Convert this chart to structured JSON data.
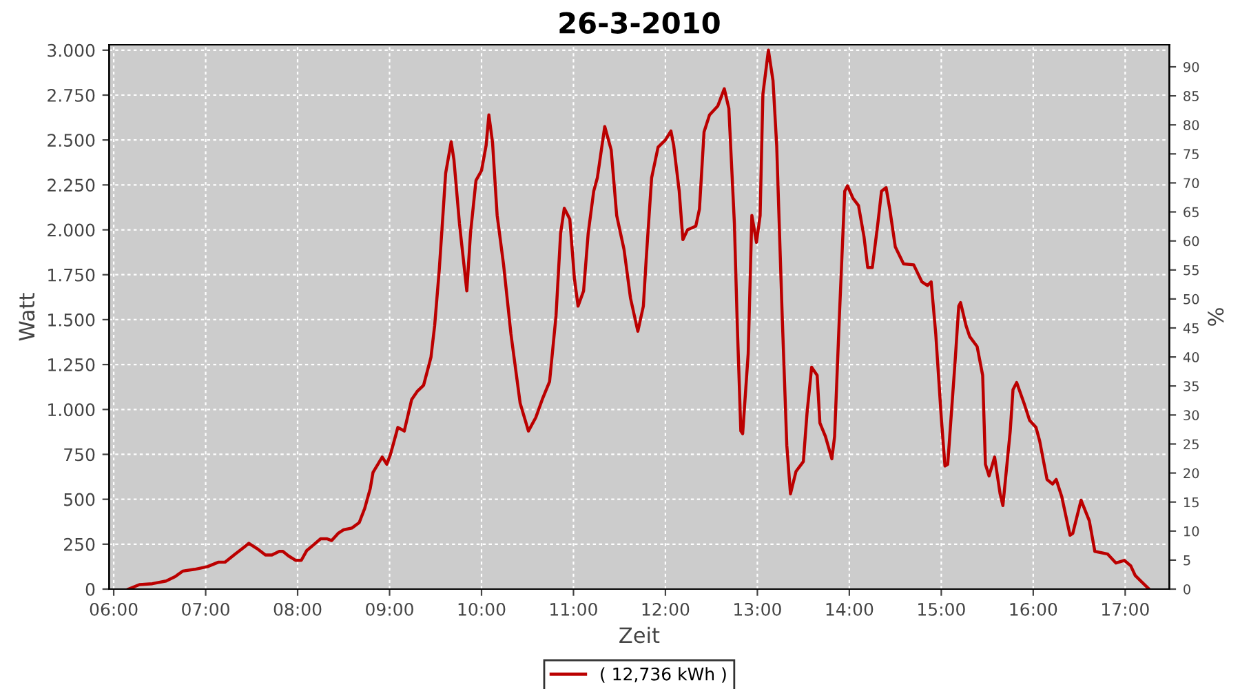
{
  "chart_data": {
    "type": "line",
    "title": "26-3-2010",
    "xlabel": "Zeit",
    "ylabel": "Watt",
    "y2label": "%",
    "x": [
      6.16,
      6.28,
      6.42,
      6.57,
      6.67,
      6.75,
      6.88,
      7.02,
      7.14,
      7.21,
      7.32,
      7.41,
      7.47,
      7.56,
      7.65,
      7.72,
      7.8,
      7.84,
      7.9,
      7.98,
      8.04,
      8.1,
      8.17,
      8.25,
      8.32,
      8.37,
      8.44,
      8.5,
      8.59,
      8.67,
      8.73,
      8.79,
      8.82,
      8.92,
      8.97,
      9.01,
      9.09,
      9.16,
      9.24,
      9.3,
      9.37,
      9.45,
      9.49,
      9.54,
      9.58,
      9.61,
      9.67,
      9.7,
      9.76,
      9.84,
      9.88,
      9.94,
      10.0,
      10.05,
      10.08,
      10.12,
      10.17,
      10.24,
      10.32,
      10.42,
      10.51,
      10.59,
      10.66,
      10.74,
      10.81,
      10.86,
      10.9,
      10.96,
      11.01,
      11.05,
      11.11,
      11.16,
      11.22,
      11.26,
      11.34,
      11.41,
      11.47,
      11.55,
      11.62,
      11.7,
      11.76,
      11.79,
      11.85,
      11.92,
      12.0,
      12.06,
      12.09,
      12.15,
      12.19,
      12.24,
      12.33,
      12.37,
      12.42,
      12.48,
      12.57,
      12.64,
      12.69,
      12.75,
      12.78,
      12.82,
      12.84,
      12.9,
      12.94,
      12.99,
      13.03,
      13.06,
      13.12,
      13.17,
      13.21,
      13.27,
      13.32,
      13.36,
      13.42,
      13.5,
      13.54,
      13.59,
      13.65,
      13.68,
      13.74,
      13.81,
      13.84,
      13.89,
      13.95,
      13.98,
      14.04,
      14.1,
      14.16,
      14.2,
      14.25,
      14.31,
      14.35,
      14.4,
      14.44,
      14.5,
      14.59,
      14.7,
      14.79,
      14.85,
      14.89,
      14.94,
      15.0,
      15.04,
      15.07,
      15.15,
      15.19,
      15.21,
      15.27,
      15.31,
      15.39,
      15.45,
      15.48,
      15.52,
      15.58,
      15.64,
      15.67,
      15.75,
      15.78,
      15.82,
      15.9,
      15.96,
      16.03,
      16.07,
      16.15,
      16.21,
      16.25,
      16.31,
      16.4,
      16.43,
      16.52,
      16.61,
      16.67,
      16.81,
      16.9,
      16.99,
      17.06,
      17.11,
      17.18,
      17.26
    ],
    "series": [
      {
        "name": "( 12,736 kWh )",
        "color": "#bb0000",
        "values": [
          0,
          25,
          30,
          45,
          70,
          100,
          110,
          125,
          150,
          150,
          195,
          230,
          255,
          225,
          190,
          190,
          210,
          210,
          185,
          160,
          160,
          215,
          245,
          280,
          280,
          270,
          310,
          330,
          340,
          370,
          450,
          560,
          650,
          735,
          695,
          750,
          900,
          880,
          1055,
          1100,
          1135,
          1290,
          1465,
          1775,
          2080,
          2315,
          2490,
          2390,
          2035,
          1660,
          1980,
          2275,
          2330,
          2470,
          2640,
          2485,
          2080,
          1805,
          1420,
          1035,
          880,
          955,
          1055,
          1155,
          1520,
          1980,
          2120,
          2060,
          1730,
          1575,
          1660,
          1980,
          2215,
          2290,
          2575,
          2445,
          2080,
          1890,
          1620,
          1435,
          1575,
          1830,
          2290,
          2460,
          2500,
          2550,
          2470,
          2215,
          1945,
          2000,
          2020,
          2115,
          2545,
          2640,
          2690,
          2785,
          2675,
          2035,
          1495,
          880,
          865,
          1310,
          2080,
          1930,
          2080,
          2755,
          3000,
          2830,
          2470,
          1520,
          800,
          530,
          655,
          710,
          980,
          1235,
          1190,
          925,
          850,
          725,
          850,
          1495,
          2215,
          2245,
          2175,
          2135,
          1960,
          1790,
          1790,
          2035,
          2215,
          2235,
          2115,
          1905,
          1810,
          1805,
          1710,
          1690,
          1710,
          1420,
          955,
          685,
          695,
          1265,
          1575,
          1595,
          1465,
          1405,
          1350,
          1190,
          695,
          630,
          735,
          530,
          465,
          880,
          1110,
          1150,
          1035,
          940,
          900,
          825,
          610,
          585,
          610,
          515,
          300,
          310,
          495,
          380,
          210,
          195,
          145,
          160,
          130,
          75,
          40,
          0
        ]
      }
    ],
    "xlim": [
      5.95,
      17.48
    ],
    "xticks": [
      {
        "value": 6,
        "label": "06:00"
      },
      {
        "value": 7,
        "label": "07:00"
      },
      {
        "value": 8,
        "label": "08:00"
      },
      {
        "value": 9,
        "label": "09:00"
      },
      {
        "value": 10,
        "label": "10:00"
      },
      {
        "value": 11,
        "label": "11:00"
      },
      {
        "value": 12,
        "label": "12:00"
      },
      {
        "value": 13,
        "label": "13:00"
      },
      {
        "value": 14,
        "label": "14:00"
      },
      {
        "value": 15,
        "label": "15:00"
      },
      {
        "value": 16,
        "label": "16:00"
      },
      {
        "value": 17,
        "label": "17:00"
      }
    ],
    "ylim": [
      0,
      3030
    ],
    "yticks": [
      0,
      {
        "value": 250,
        "label": "250"
      },
      {
        "value": 500,
        "label": "500"
      },
      {
        "value": 750,
        "label": "750"
      },
      {
        "value": 1000,
        "label": "1.000"
      },
      {
        "value": 1250,
        "label": "1.250"
      },
      {
        "value": 1500,
        "label": "1.500"
      },
      {
        "value": 1750,
        "label": "1.750"
      },
      {
        "value": 2000,
        "label": "2.000"
      },
      {
        "value": 2250,
        "label": "2.250"
      },
      {
        "value": 2500,
        "label": "2.500"
      },
      {
        "value": 2750,
        "label": "2.750"
      },
      {
        "value": 3000,
        "label": "3.000"
      }
    ],
    "y2lim": [
      0,
      93.8
    ],
    "y2ticks": [
      0,
      5,
      10,
      15,
      20,
      25,
      30,
      35,
      40,
      45,
      50,
      55,
      60,
      65,
      70,
      75,
      80,
      85,
      90
    ],
    "grid": true,
    "legend": "bottom",
    "marker": "none",
    "line_style": "solid"
  }
}
